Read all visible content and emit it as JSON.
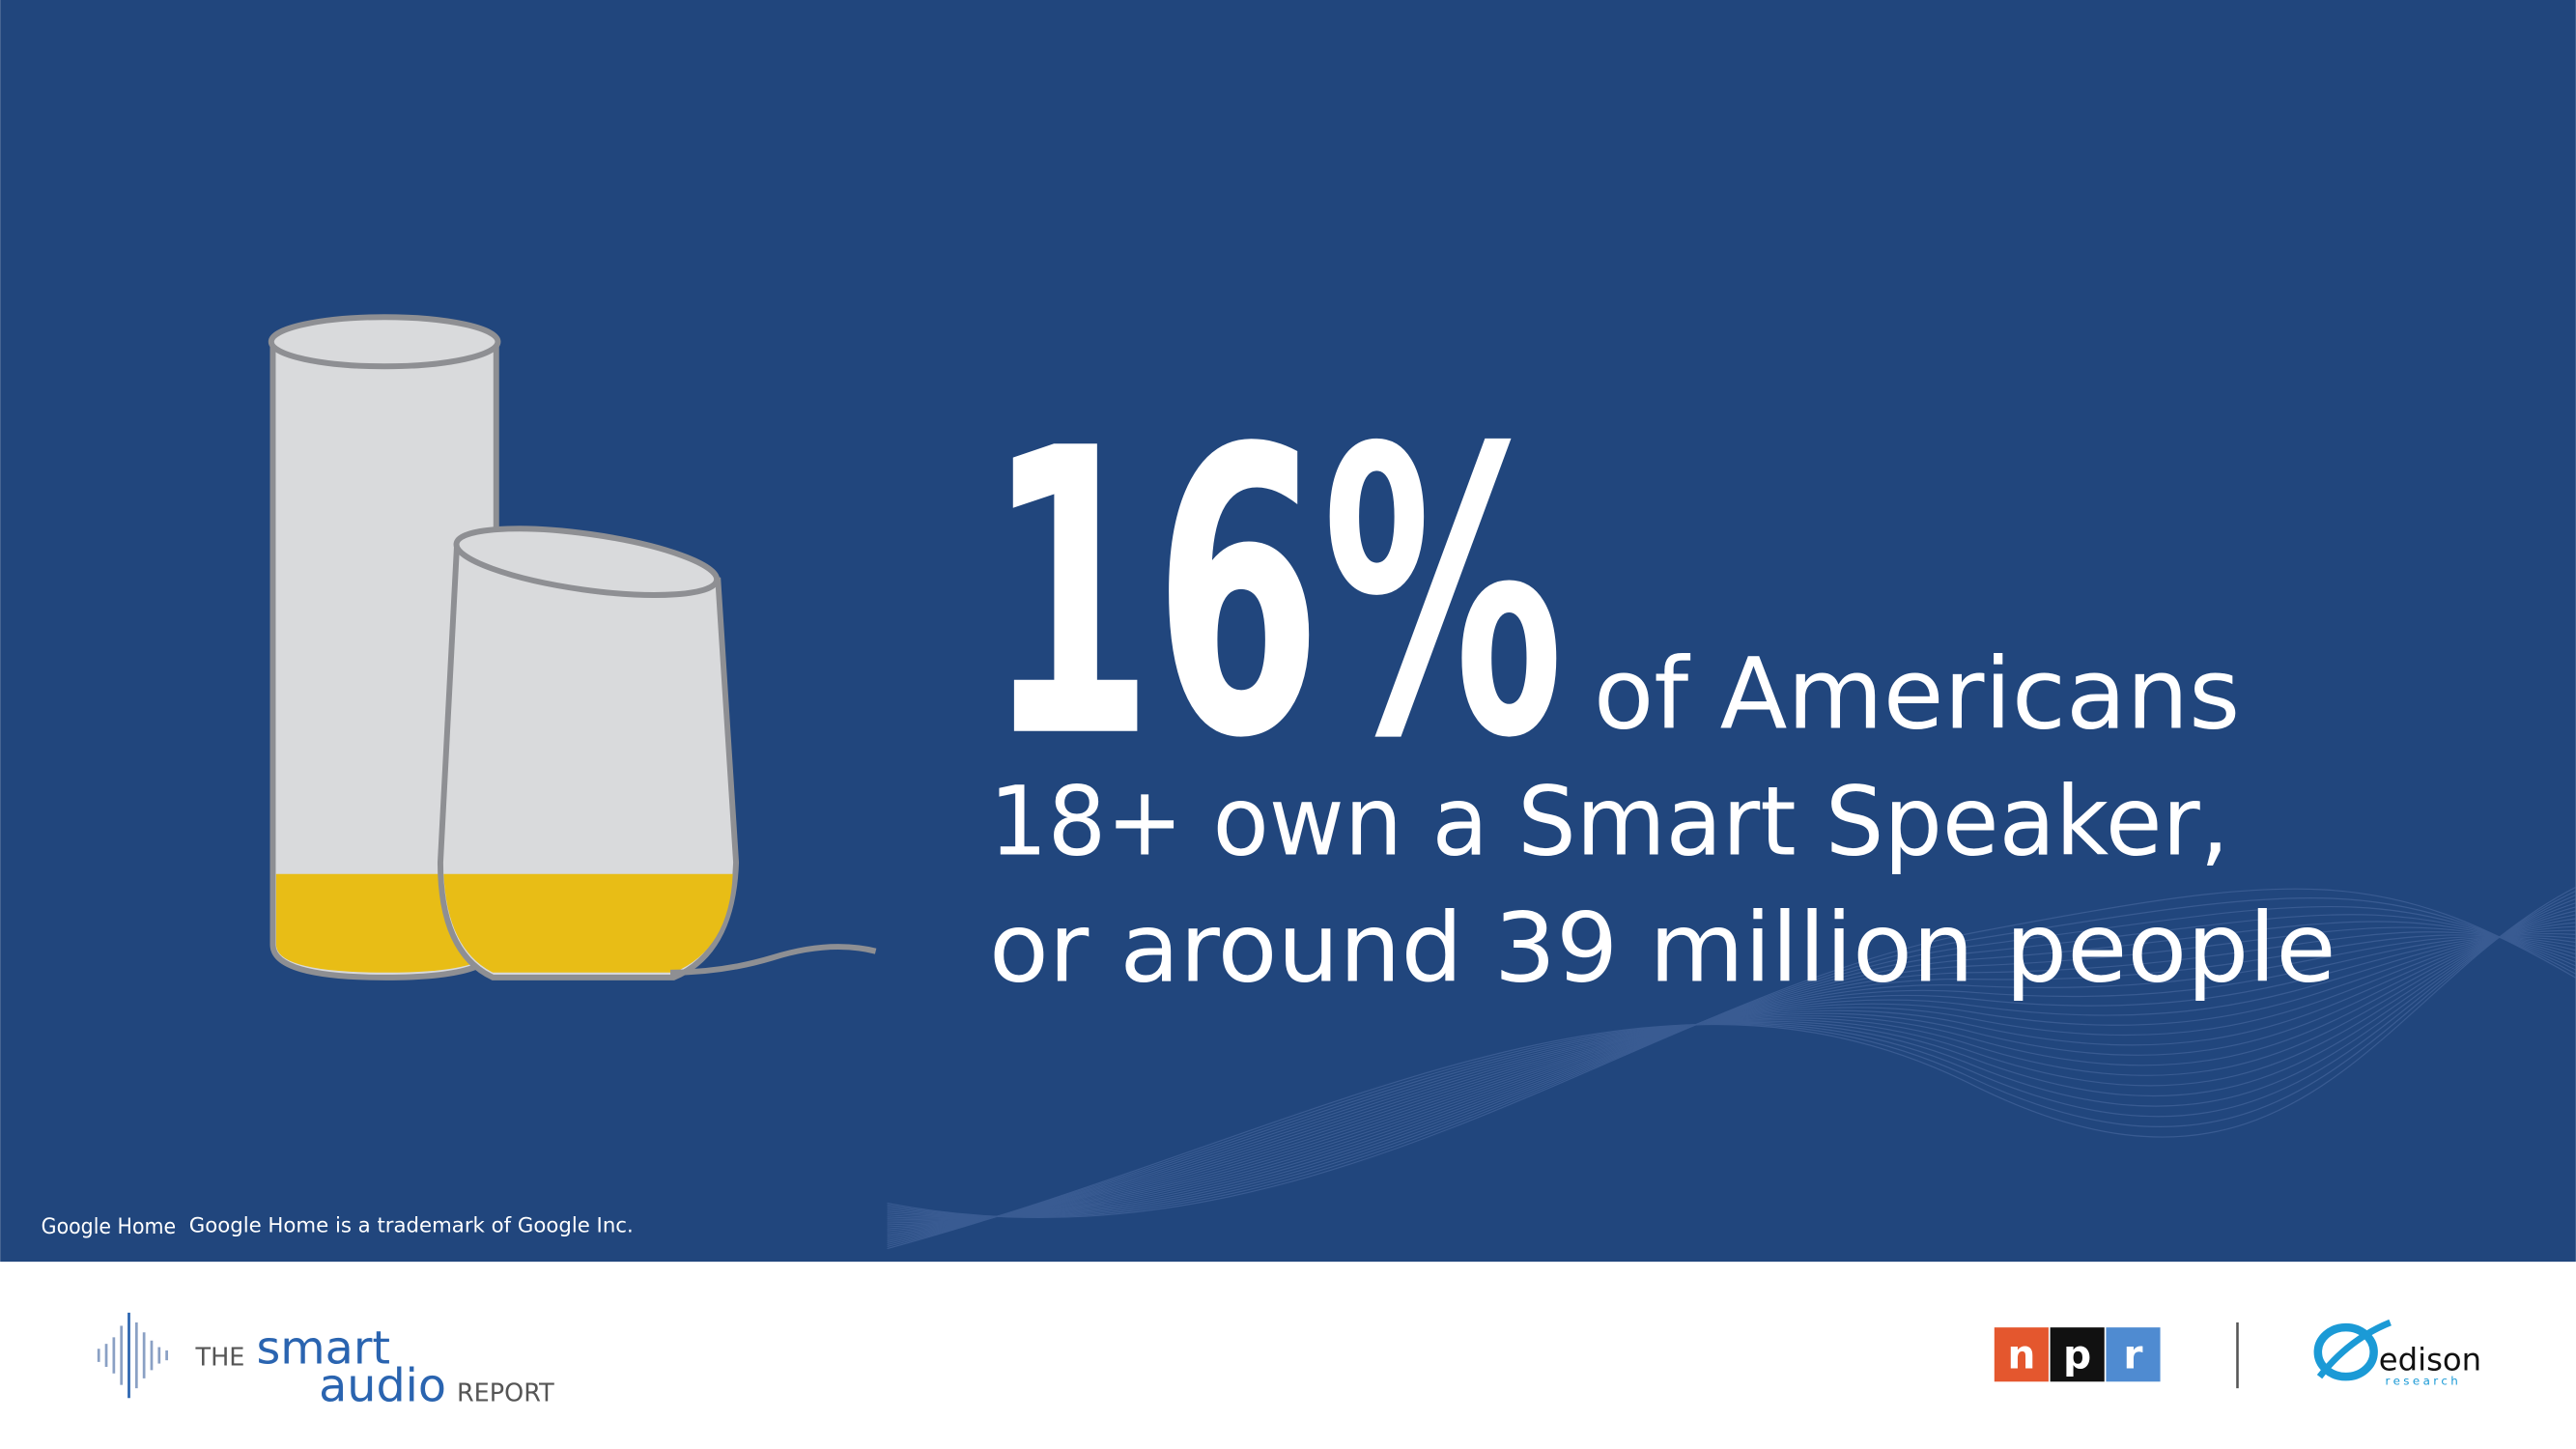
{
  "headline": {
    "stat": "16%",
    "line1": "of Americans",
    "line2": "18+ own a Smart Speaker,",
    "line3": "or around 39 million people"
  },
  "trademark": {
    "logo": "Google Home",
    "note": "Google Home is a trademark of Google Inc."
  },
  "footer": {
    "report_logo": {
      "the": "THE",
      "smart": "smart",
      "audio": "audio",
      "report": "REPORT"
    },
    "npr": [
      "n",
      "p",
      "r"
    ],
    "edison": {
      "name": "edison",
      "sub": "research"
    }
  }
}
